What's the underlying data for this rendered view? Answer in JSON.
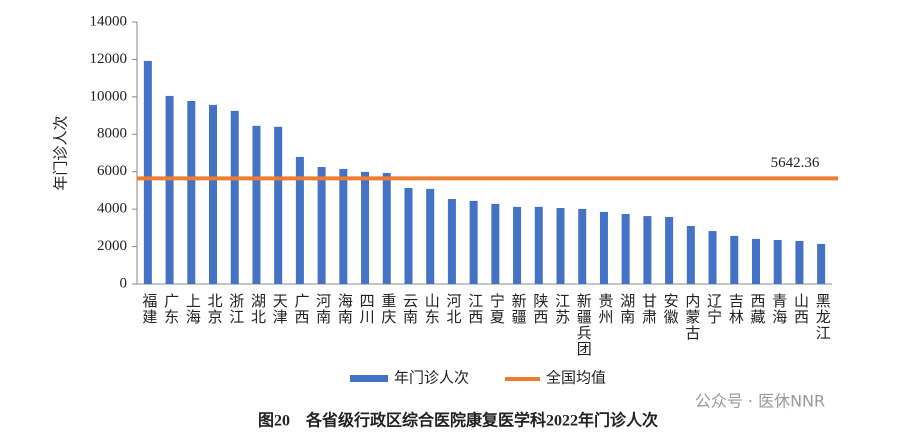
{
  "chart_data": {
    "type": "bar",
    "caption": "图20　各省级行政区综合医院康复医学科2022年门诊人次",
    "y_label": "年门诊人次",
    "watermark": "公众号 · 医休NNR",
    "categories": [
      "福建",
      "广东",
      "上海",
      "北京",
      "浙江",
      "湖北",
      "天津",
      "广西",
      "河南",
      "海南",
      "四川",
      "重庆",
      "云南",
      "山东",
      "河北",
      "江西",
      "宁夏",
      "新疆",
      "陕西",
      "江苏",
      "新疆兵团",
      "贵州",
      "湖南",
      "甘肃",
      "安徽",
      "内蒙古",
      "辽宁",
      "吉林",
      "西藏",
      "青海",
      "山西",
      "黑龙江"
    ],
    "series": [
      {
        "name": "年门诊人次",
        "color": "#4472c4",
        "values": [
          11920,
          10050,
          9780,
          9570,
          9250,
          8450,
          8400,
          6790,
          6250,
          6150,
          5990,
          5930,
          5130,
          5080,
          4540,
          4440,
          4280,
          4120,
          4120,
          4060,
          4010,
          3850,
          3740,
          3630,
          3580,
          3100,
          2830,
          2570,
          2410,
          2350,
          2300,
          2140
        ]
      }
    ],
    "reference_line": {
      "name": "全国均值",
      "color": "#ed7d31",
      "value": 5642.36
    },
    "ylim": [
      0,
      14000
    ],
    "yticks": [
      0,
      2000,
      4000,
      6000,
      8000,
      10000,
      12000,
      14000
    ]
  }
}
